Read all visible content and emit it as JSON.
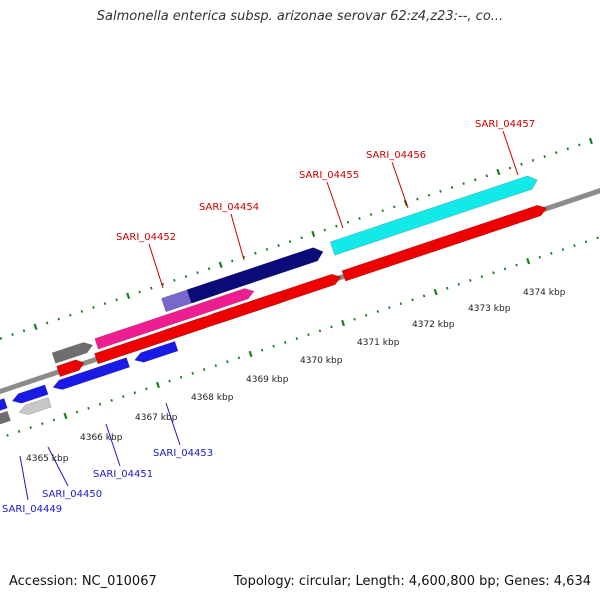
{
  "title": "Salmonella enterica subsp. arizonae serovar 62:z4,z23:--, co...",
  "footer": {
    "accession": "Accession: NC_010067",
    "stats": "Topology: circular; Length: 4,600,800 bp; Genes: 4,634"
  },
  "colors": {
    "backbone": "#8c8c8c",
    "tick": "#1a7f1a",
    "label_forward": "#cc0000",
    "label_reverse": "#1a1acc",
    "blue": "#1a1ae6",
    "red": "#ee0000",
    "gray": "#6e6e6e",
    "light_gray": "#c8c8c8",
    "pink": "#ee1e90",
    "slate": "#7a67cc",
    "navy": "#0a0a78",
    "cyan": "#12eaea"
  },
  "scale": {
    "labels": [
      "4365 kbp",
      "4366 kbp",
      "4367 kbp",
      "4368 kbp",
      "4369 kbp",
      "4370 kbp",
      "4371 kbp",
      "4372 kbp",
      "4373 kbp",
      "4374 kbp"
    ]
  },
  "labels_forward": [
    "SARI_04452",
    "SARI_04454",
    "SARI_04455",
    "SARI_04456",
    "SARI_04457"
  ],
  "labels_reverse": [
    "SARI_04449",
    "SARI_04450",
    "SARI_04451",
    "SARI_04453"
  ]
}
